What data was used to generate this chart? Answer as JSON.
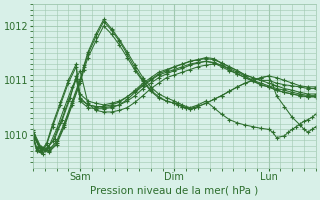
{
  "title": "",
  "xlabel": "Pression niveau de la mer( hPa )",
  "ylabel": "",
  "bg_color": "#d8f0e8",
  "plot_bg_color": "#d8f0e8",
  "grid_color": "#a0c8b0",
  "line_color": "#2d6e2d",
  "tick_color": "#2d6e2d",
  "label_color": "#2d6e2d",
  "ylim": [
    1009.4,
    1012.4
  ],
  "xlim": [
    0,
    144
  ],
  "xtick_positions": [
    24,
    72,
    120
  ],
  "xtick_labels": [
    "Sam",
    "Dim",
    "Lun"
  ],
  "ytick_positions": [
    1010,
    1011,
    1012
  ],
  "ytick_labels": [
    "1010",
    "1011",
    "1012"
  ],
  "series": [
    {
      "x": [
        0,
        2,
        4,
        7,
        10,
        14,
        18,
        22,
        24,
        28,
        32,
        36,
        40,
        44,
        48,
        52,
        56,
        60,
        64,
        68,
        72,
        76,
        80,
        84,
        88,
        92,
        96,
        100,
        104,
        108,
        112,
        116,
        120,
        124,
        128,
        132,
        136,
        140,
        144
      ],
      "y": [
        1010.0,
        1009.75,
        1009.7,
        1009.85,
        1010.2,
        1010.6,
        1011.0,
        1011.3,
        1010.65,
        1010.55,
        1010.52,
        1010.52,
        1010.55,
        1010.6,
        1010.7,
        1010.82,
        1010.95,
        1011.05,
        1011.15,
        1011.2,
        1011.25,
        1011.3,
        1011.35,
        1011.38,
        1011.4,
        1011.38,
        1011.32,
        1011.25,
        1011.18,
        1011.1,
        1011.05,
        1011.0,
        1011.0,
        1010.95,
        1010.92,
        1010.9,
        1010.88,
        1010.85,
        1010.85
      ]
    },
    {
      "x": [
        0,
        2,
        4,
        7,
        10,
        14,
        18,
        22,
        24,
        28,
        32,
        36,
        40,
        44,
        48,
        52,
        56,
        60,
        64,
        68,
        72,
        76,
        80,
        84,
        88,
        92,
        96,
        100,
        104,
        108,
        112,
        116,
        120,
        124,
        128,
        132,
        136,
        140,
        144
      ],
      "y": [
        1009.98,
        1009.72,
        1009.68,
        1009.82,
        1010.15,
        1010.55,
        1010.95,
        1011.25,
        1010.62,
        1010.5,
        1010.48,
        1010.48,
        1010.5,
        1010.55,
        1010.65,
        1010.78,
        1010.9,
        1011.0,
        1011.1,
        1011.15,
        1011.2,
        1011.25,
        1011.3,
        1011.33,
        1011.35,
        1011.33,
        1011.28,
        1011.2,
        1011.12,
        1011.05,
        1010.98,
        1010.92,
        1010.88,
        1010.82,
        1010.78,
        1010.75,
        1010.72,
        1010.7,
        1010.7
      ]
    },
    {
      "x": [
        0,
        2,
        5,
        8,
        12,
        16,
        20,
        24,
        28,
        32,
        36,
        40,
        44,
        48,
        52,
        56,
        60,
        64,
        68,
        72,
        76,
        80,
        84,
        88,
        92,
        96,
        100,
        104,
        108,
        112,
        116,
        120,
        124,
        128,
        132,
        136,
        140,
        144
      ],
      "y": [
        1009.95,
        1009.7,
        1009.65,
        1009.78,
        1010.1,
        1010.5,
        1010.88,
        1011.18,
        1010.58,
        1010.45,
        1010.42,
        1010.42,
        1010.45,
        1010.5,
        1010.6,
        1010.72,
        1010.85,
        1010.95,
        1011.05,
        1011.1,
        1011.15,
        1011.2,
        1011.25,
        1011.28,
        1011.3,
        1011.28,
        1011.22,
        1011.15,
        1011.08,
        1011.0,
        1010.92,
        1010.88,
        1010.82,
        1010.78,
        1010.75,
        1010.72,
        1010.7,
        1010.7
      ]
    },
    {
      "x": [
        0,
        3,
        6,
        10,
        14,
        18,
        22,
        24,
        28,
        32,
        36,
        40,
        44,
        48,
        52,
        56,
        60,
        64,
        68,
        72,
        76,
        80,
        84,
        88,
        92,
        96,
        100,
        104,
        108,
        112,
        116,
        120,
        124,
        128,
        132,
        136,
        140,
        144
      ],
      "y": [
        1010.02,
        1009.78,
        1009.72,
        1009.88,
        1010.22,
        1010.62,
        1011.02,
        1010.68,
        1010.55,
        1010.52,
        1010.5,
        1010.52,
        1010.55,
        1010.62,
        1010.72,
        1010.85,
        1010.95,
        1011.05,
        1011.12,
        1011.18,
        1011.22,
        1011.28,
        1011.32,
        1011.35,
        1011.32,
        1011.25,
        1011.18,
        1011.12,
        1011.05,
        1011.0,
        1010.95,
        1010.9,
        1010.85,
        1010.82,
        1010.78,
        1010.75,
        1010.72,
        1010.72
      ]
    },
    {
      "x": [
        0,
        3,
        7,
        11,
        15,
        19,
        22,
        24,
        28,
        32,
        36,
        40,
        44,
        48,
        52,
        56,
        60,
        64,
        68,
        72,
        76,
        80,
        84,
        88,
        92,
        96,
        100,
        104,
        108,
        112,
        116,
        120,
        124,
        128,
        132,
        136,
        140,
        144
      ],
      "y": [
        1010.05,
        1009.8,
        1009.75,
        1009.92,
        1010.28,
        1010.68,
        1011.08,
        1010.75,
        1010.62,
        1010.58,
        1010.55,
        1010.58,
        1010.62,
        1010.7,
        1010.8,
        1010.92,
        1011.02,
        1011.12,
        1011.18,
        1011.25,
        1011.3,
        1011.35,
        1011.38,
        1011.42,
        1011.4,
        1011.32,
        1011.25,
        1011.18,
        1011.1,
        1011.05,
        1011.0,
        1010.95,
        1010.9,
        1010.85,
        1010.82,
        1010.78,
        1010.75,
        1010.75
      ]
    },
    {
      "x": [
        0,
        4,
        8,
        12,
        16,
        20,
        24,
        26,
        28,
        32,
        36,
        40,
        44,
        48,
        52,
        56,
        60,
        64,
        68,
        72,
        74,
        76,
        78,
        80,
        82,
        84,
        88,
        92,
        96,
        100,
        104,
        108,
        112,
        116,
        120,
        124,
        128,
        132,
        136,
        140,
        144
      ],
      "y": [
        1010.0,
        1009.72,
        1009.68,
        1009.82,
        1010.15,
        1010.55,
        1010.95,
        1011.2,
        1011.42,
        1011.72,
        1012.0,
        1011.85,
        1011.65,
        1011.42,
        1011.18,
        1010.98,
        1010.8,
        1010.68,
        1010.62,
        1010.58,
        1010.55,
        1010.52,
        1010.5,
        1010.48,
        1010.5,
        1010.52,
        1010.58,
        1010.65,
        1010.72,
        1010.8,
        1010.88,
        1010.95,
        1011.0,
        1011.05,
        1011.08,
        1011.05,
        1011.0,
        1010.95,
        1010.9,
        1010.88,
        1010.88
      ]
    },
    {
      "x": [
        0,
        4,
        8,
        12,
        16,
        20,
        24,
        26,
        28,
        32,
        36,
        40,
        44,
        48,
        52,
        56,
        60,
        64,
        68,
        72,
        74,
        76,
        78,
        80,
        84,
        88,
        92,
        96,
        100,
        104,
        108,
        112,
        116,
        120,
        122,
        124,
        128,
        132,
        136,
        138,
        140,
        142,
        144
      ],
      "y": [
        1010.05,
        1009.75,
        1009.7,
        1009.85,
        1010.18,
        1010.58,
        1010.98,
        1011.25,
        1011.48,
        1011.8,
        1012.08,
        1011.92,
        1011.72,
        1011.48,
        1011.22,
        1011.0,
        1010.82,
        1010.7,
        1010.62,
        1010.58,
        1010.55,
        1010.52,
        1010.5,
        1010.48,
        1010.52,
        1010.58,
        1010.65,
        1010.72,
        1010.8,
        1010.88,
        1010.95,
        1011.0,
        1011.05,
        1011.08,
        1010.92,
        1010.72,
        1010.52,
        1010.32,
        1010.18,
        1010.1,
        1010.05,
        1010.1,
        1010.15
      ]
    },
    {
      "x": [
        0,
        4,
        8,
        12,
        16,
        20,
        24,
        26,
        28,
        32,
        36,
        40,
        44,
        48,
        52,
        56,
        60,
        64,
        68,
        72,
        74,
        76,
        78,
        80,
        84,
        88,
        92,
        96,
        100,
        104,
        108,
        112,
        116,
        120,
        122,
        124,
        128,
        130,
        132,
        134,
        136,
        138,
        140,
        142,
        144
      ],
      "y": [
        1010.08,
        1009.78,
        1009.72,
        1009.88,
        1010.22,
        1010.62,
        1011.02,
        1011.28,
        1011.52,
        1011.85,
        1012.12,
        1011.95,
        1011.75,
        1011.52,
        1011.28,
        1011.05,
        1010.88,
        1010.75,
        1010.68,
        1010.62,
        1010.58,
        1010.55,
        1010.52,
        1010.5,
        1010.55,
        1010.62,
        1010.5,
        1010.38,
        1010.28,
        1010.22,
        1010.18,
        1010.15,
        1010.12,
        1010.1,
        1010.05,
        1009.95,
        1009.98,
        1010.05,
        1010.1,
        1010.15,
        1010.2,
        1010.25,
        1010.28,
        1010.32,
        1010.38
      ]
    }
  ]
}
